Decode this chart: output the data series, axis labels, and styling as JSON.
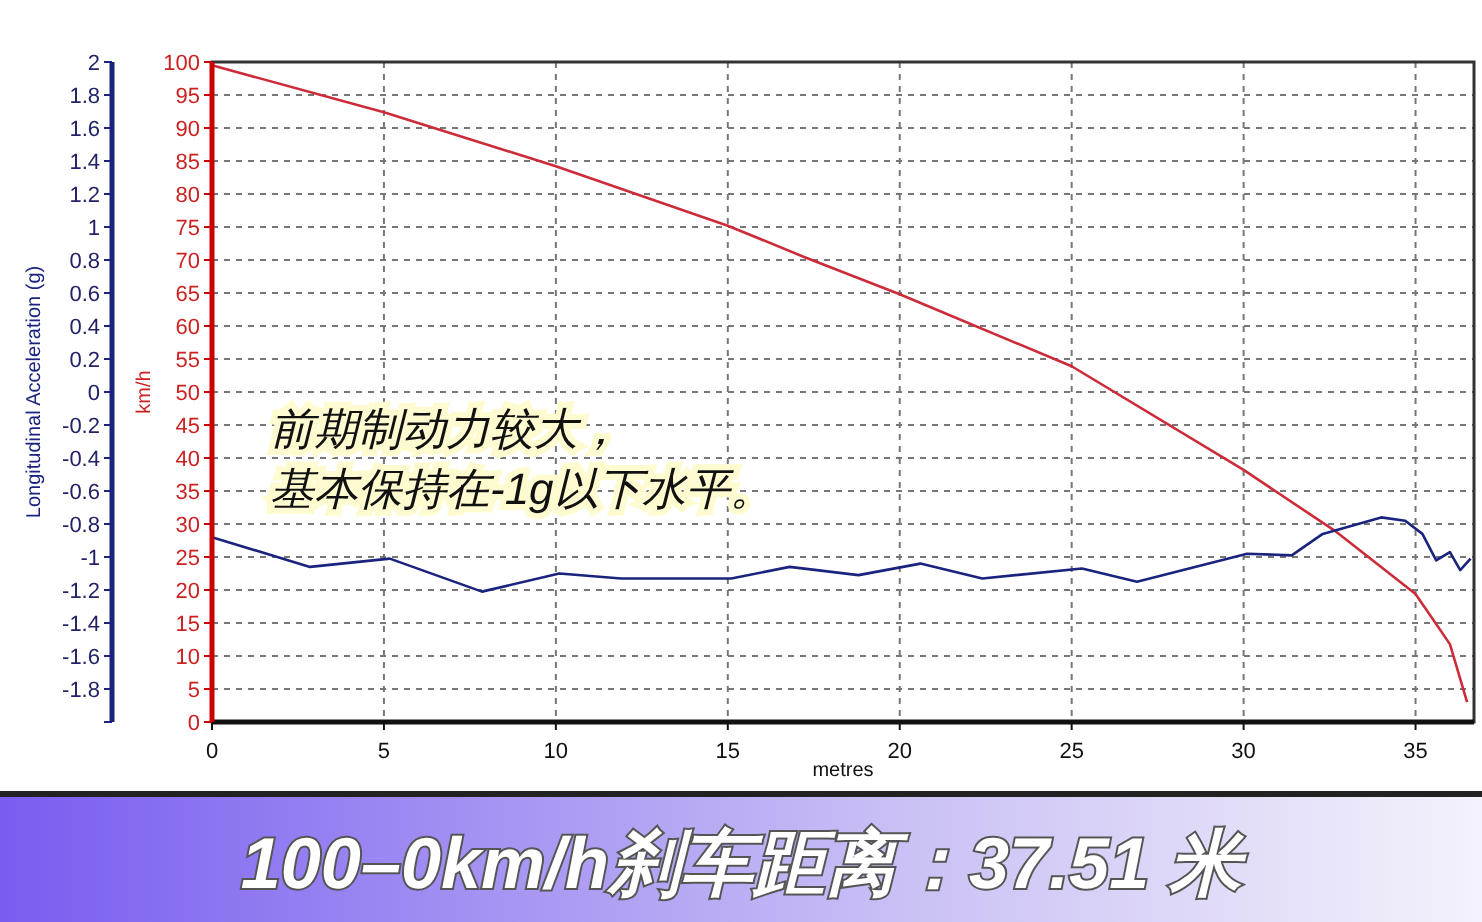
{
  "chart_data": {
    "type": "line",
    "title": "100–0km/h刹车距离：37.51 米",
    "xlabel": "metres",
    "ylabel": "Longitudinal Acceleration (g)",
    "y2label": "km/h",
    "annotations": [
      "前期制动力较大，",
      "基本保持在-1g以下水平。"
    ],
    "xlim": [
      0,
      36.7
    ],
    "xticks": [
      0,
      5,
      10,
      15,
      20,
      25,
      30,
      35
    ],
    "ylim": [
      -2,
      2
    ],
    "yticks": [
      {
        "value": -2,
        "label": null
      },
      -1.8,
      -1.6,
      -1.4,
      -1.2,
      -1,
      -0.8,
      -0.6,
      -0.4,
      -0.2,
      0,
      0.2,
      0.4,
      0.6,
      0.8,
      1,
      1.2,
      1.4,
      1.6,
      1.8,
      2
    ],
    "y2lim": [
      0,
      100
    ],
    "y2ticks": [
      0,
      5,
      10,
      15,
      20,
      25,
      30,
      35,
      40,
      45,
      50,
      55,
      60,
      65,
      70,
      75,
      80,
      85,
      90,
      95,
      100
    ],
    "grid": true,
    "line_style": "solid",
    "marker": "none",
    "series": [
      {
        "color": "#cc2b3a",
        "axis": "y2",
        "x": [
          0,
          5,
          10,
          15,
          17.2,
          20,
          25,
          30,
          32.7,
          35,
          36,
          36.5
        ],
        "values": [
          99.5,
          92.4,
          84.2,
          75.2,
          70.5,
          64.8,
          53.9,
          38.2,
          28.8,
          19.4,
          11.8,
          3
        ]
      },
      {
        "color": "#1a237e",
        "axis": "y",
        "x": [
          0,
          2.85,
          5.17,
          7.85,
          10.1,
          11.9,
          15.1,
          16.8,
          18.8,
          20.6,
          22.4,
          25.3,
          26.9,
          30.1,
          31.4,
          32.3,
          34.0,
          34.7,
          35.2,
          35.6,
          36.0,
          36.3,
          36.6
        ],
        "values": [
          -0.88,
          -1.06,
          -1.01,
          -1.21,
          -1.1,
          -1.13,
          -1.13,
          -1.06,
          -1.11,
          -1.04,
          -1.13,
          -1.07,
          -1.15,
          -0.98,
          -0.99,
          -0.86,
          -0.76,
          -0.78,
          -0.86,
          -1.02,
          -0.97,
          -1.08,
          -1.01
        ]
      }
    ]
  }
}
